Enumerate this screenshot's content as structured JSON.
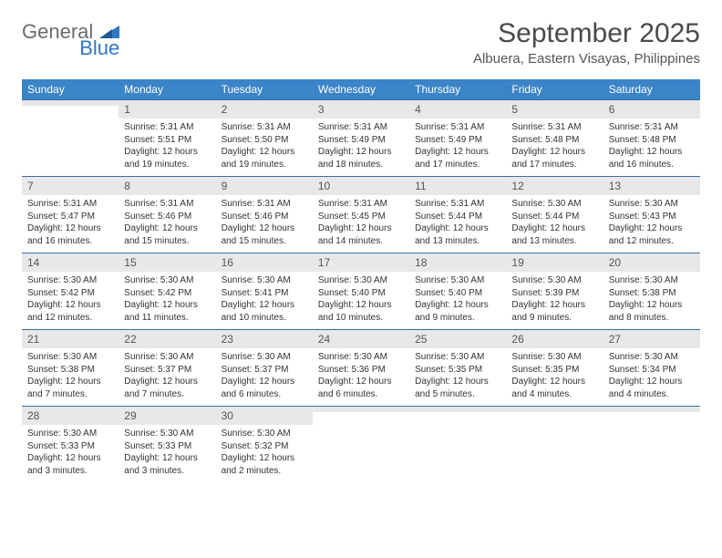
{
  "brand": {
    "word1": "General",
    "word2": "Blue",
    "text_color_gray": "#6b6b6b",
    "text_color_blue": "#2f78c2",
    "triangle_color": "#2f78c2"
  },
  "title": "September 2025",
  "location": "Albuera, Eastern Visayas, Philippines",
  "header_bg": "#3b84c7",
  "header_text_color": "#ffffff",
  "row_divider_color": "#3b6fa0",
  "daynum_bg": "#e8e8e8",
  "page_bg": "#ffffff",
  "day_names": [
    "Sunday",
    "Monday",
    "Tuesday",
    "Wednesday",
    "Thursday",
    "Friday",
    "Saturday"
  ],
  "weeks": [
    [
      {
        "num": "",
        "lines": [
          "",
          "",
          "",
          ""
        ]
      },
      {
        "num": "1",
        "lines": [
          "Sunrise: 5:31 AM",
          "Sunset: 5:51 PM",
          "Daylight: 12 hours",
          "and 19 minutes."
        ]
      },
      {
        "num": "2",
        "lines": [
          "Sunrise: 5:31 AM",
          "Sunset: 5:50 PM",
          "Daylight: 12 hours",
          "and 19 minutes."
        ]
      },
      {
        "num": "3",
        "lines": [
          "Sunrise: 5:31 AM",
          "Sunset: 5:49 PM",
          "Daylight: 12 hours",
          "and 18 minutes."
        ]
      },
      {
        "num": "4",
        "lines": [
          "Sunrise: 5:31 AM",
          "Sunset: 5:49 PM",
          "Daylight: 12 hours",
          "and 17 minutes."
        ]
      },
      {
        "num": "5",
        "lines": [
          "Sunrise: 5:31 AM",
          "Sunset: 5:48 PM",
          "Daylight: 12 hours",
          "and 17 minutes."
        ]
      },
      {
        "num": "6",
        "lines": [
          "Sunrise: 5:31 AM",
          "Sunset: 5:48 PM",
          "Daylight: 12 hours",
          "and 16 minutes."
        ]
      }
    ],
    [
      {
        "num": "7",
        "lines": [
          "Sunrise: 5:31 AM",
          "Sunset: 5:47 PM",
          "Daylight: 12 hours",
          "and 16 minutes."
        ]
      },
      {
        "num": "8",
        "lines": [
          "Sunrise: 5:31 AM",
          "Sunset: 5:46 PM",
          "Daylight: 12 hours",
          "and 15 minutes."
        ]
      },
      {
        "num": "9",
        "lines": [
          "Sunrise: 5:31 AM",
          "Sunset: 5:46 PM",
          "Daylight: 12 hours",
          "and 15 minutes."
        ]
      },
      {
        "num": "10",
        "lines": [
          "Sunrise: 5:31 AM",
          "Sunset: 5:45 PM",
          "Daylight: 12 hours",
          "and 14 minutes."
        ]
      },
      {
        "num": "11",
        "lines": [
          "Sunrise: 5:31 AM",
          "Sunset: 5:44 PM",
          "Daylight: 12 hours",
          "and 13 minutes."
        ]
      },
      {
        "num": "12",
        "lines": [
          "Sunrise: 5:30 AM",
          "Sunset: 5:44 PM",
          "Daylight: 12 hours",
          "and 13 minutes."
        ]
      },
      {
        "num": "13",
        "lines": [
          "Sunrise: 5:30 AM",
          "Sunset: 5:43 PM",
          "Daylight: 12 hours",
          "and 12 minutes."
        ]
      }
    ],
    [
      {
        "num": "14",
        "lines": [
          "Sunrise: 5:30 AM",
          "Sunset: 5:42 PM",
          "Daylight: 12 hours",
          "and 12 minutes."
        ]
      },
      {
        "num": "15",
        "lines": [
          "Sunrise: 5:30 AM",
          "Sunset: 5:42 PM",
          "Daylight: 12 hours",
          "and 11 minutes."
        ]
      },
      {
        "num": "16",
        "lines": [
          "Sunrise: 5:30 AM",
          "Sunset: 5:41 PM",
          "Daylight: 12 hours",
          "and 10 minutes."
        ]
      },
      {
        "num": "17",
        "lines": [
          "Sunrise: 5:30 AM",
          "Sunset: 5:40 PM",
          "Daylight: 12 hours",
          "and 10 minutes."
        ]
      },
      {
        "num": "18",
        "lines": [
          "Sunrise: 5:30 AM",
          "Sunset: 5:40 PM",
          "Daylight: 12 hours",
          "and 9 minutes."
        ]
      },
      {
        "num": "19",
        "lines": [
          "Sunrise: 5:30 AM",
          "Sunset: 5:39 PM",
          "Daylight: 12 hours",
          "and 9 minutes."
        ]
      },
      {
        "num": "20",
        "lines": [
          "Sunrise: 5:30 AM",
          "Sunset: 5:38 PM",
          "Daylight: 12 hours",
          "and 8 minutes."
        ]
      }
    ],
    [
      {
        "num": "21",
        "lines": [
          "Sunrise: 5:30 AM",
          "Sunset: 5:38 PM",
          "Daylight: 12 hours",
          "and 7 minutes."
        ]
      },
      {
        "num": "22",
        "lines": [
          "Sunrise: 5:30 AM",
          "Sunset: 5:37 PM",
          "Daylight: 12 hours",
          "and 7 minutes."
        ]
      },
      {
        "num": "23",
        "lines": [
          "Sunrise: 5:30 AM",
          "Sunset: 5:37 PM",
          "Daylight: 12 hours",
          "and 6 minutes."
        ]
      },
      {
        "num": "24",
        "lines": [
          "Sunrise: 5:30 AM",
          "Sunset: 5:36 PM",
          "Daylight: 12 hours",
          "and 6 minutes."
        ]
      },
      {
        "num": "25",
        "lines": [
          "Sunrise: 5:30 AM",
          "Sunset: 5:35 PM",
          "Daylight: 12 hours",
          "and 5 minutes."
        ]
      },
      {
        "num": "26",
        "lines": [
          "Sunrise: 5:30 AM",
          "Sunset: 5:35 PM",
          "Daylight: 12 hours",
          "and 4 minutes."
        ]
      },
      {
        "num": "27",
        "lines": [
          "Sunrise: 5:30 AM",
          "Sunset: 5:34 PM",
          "Daylight: 12 hours",
          "and 4 minutes."
        ]
      }
    ],
    [
      {
        "num": "28",
        "lines": [
          "Sunrise: 5:30 AM",
          "Sunset: 5:33 PM",
          "Daylight: 12 hours",
          "and 3 minutes."
        ]
      },
      {
        "num": "29",
        "lines": [
          "Sunrise: 5:30 AM",
          "Sunset: 5:33 PM",
          "Daylight: 12 hours",
          "and 3 minutes."
        ]
      },
      {
        "num": "30",
        "lines": [
          "Sunrise: 5:30 AM",
          "Sunset: 5:32 PM",
          "Daylight: 12 hours",
          "and 2 minutes."
        ]
      },
      {
        "num": "",
        "lines": [
          "",
          "",
          "",
          ""
        ]
      },
      {
        "num": "",
        "lines": [
          "",
          "",
          "",
          ""
        ]
      },
      {
        "num": "",
        "lines": [
          "",
          "",
          "",
          ""
        ]
      },
      {
        "num": "",
        "lines": [
          "",
          "",
          "",
          ""
        ]
      }
    ]
  ]
}
